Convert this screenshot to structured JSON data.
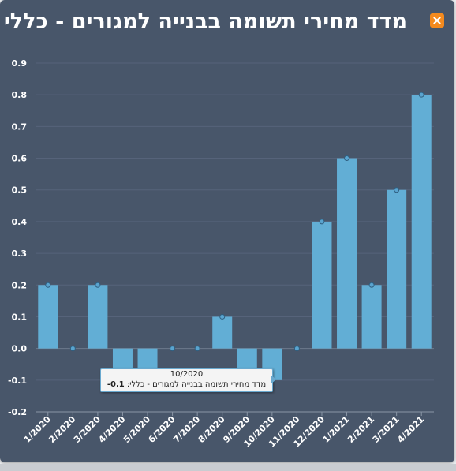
{
  "window": {
    "title": "מדד מחירי תשומה בבנייה למגורים - כללי",
    "close_icon": "close-icon",
    "accent_color": "#f48a1e"
  },
  "chart_data": {
    "type": "bar",
    "title": "מדד מחירי תשומה בבנייה למגורים - כללי",
    "xlabel": "",
    "ylabel": "",
    "categories": [
      "1/2020",
      "2/2020",
      "3/2020",
      "4/2020",
      "5/2020",
      "6/2020",
      "7/2020",
      "8/2020",
      "9/2020",
      "10/2020",
      "11/2020",
      "12/2020",
      "1/2021",
      "2/2021",
      "3/2021",
      "4/2021"
    ],
    "series": [
      {
        "values": [
          0.2,
          0.0,
          0.2,
          -0.1,
          -0.1,
          0.0,
          0.0,
          0.1,
          -0.1,
          -0.1,
          0.0,
          0.4,
          0.6,
          0.2,
          0.5,
          0.8
        ],
        "color": "#62aed5"
      }
    ],
    "ylim": [
      -0.2,
      0.9
    ],
    "yticks": [
      "0.9",
      "0.8",
      "0.7",
      "0.6",
      "0.5",
      "0.4",
      "0.3",
      "0.2",
      "0.1",
      "0.0",
      "-0.1",
      "-0.2"
    ],
    "grid": true,
    "legend": "none"
  },
  "tooltip": {
    "header": "10/2020",
    "series_label": "מדד מחירי תשומה בבנייה למגורים - כללי:",
    "value": "-0.1"
  }
}
